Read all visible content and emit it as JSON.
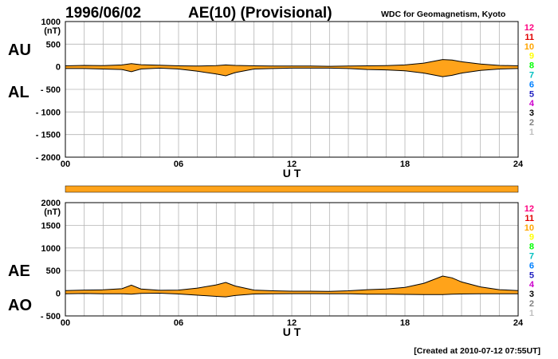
{
  "header": {
    "date": "1996/06/02",
    "title": "AE(10) (Provisional)",
    "source": "WDC for Geomagnetism, Kyoto"
  },
  "footer": {
    "created": "[Created at 2010-07-12 07:55UT]"
  },
  "colors": {
    "fill": "#ffa31a",
    "grid": "#b4b4b4",
    "line": "#000000",
    "station_colors": [
      "#c0c0c0",
      "#808080",
      "#000000",
      "#cc00cc",
      "#2020c0",
      "#0080ff",
      "#00c0c0",
      "#00ff00",
      "#ffff00",
      "#ffa500",
      "#e00000",
      "#ff0080"
    ]
  },
  "station_labels": [
    "1",
    "2",
    "3",
    "4",
    "5",
    "6",
    "7",
    "8",
    "9",
    "10",
    "11",
    "12"
  ],
  "chart_data": [
    {
      "type": "area",
      "title": "1996/06/02 AE(10) (Provisional)",
      "ylabel_unit": "(nT)",
      "side_labels": [
        "AU",
        "AL"
      ],
      "xlabel": "U T",
      "x_ticks": [
        "00",
        "06",
        "12",
        "18",
        "24"
      ],
      "y_ticks": [
        "1000",
        "500",
        "0",
        "- 500",
        "- 1000",
        "- 1500",
        "- 2000"
      ],
      "xlim": [
        0,
        24
      ],
      "ylim": [
        -2000,
        1000
      ],
      "grid": true,
      "series": [
        {
          "name": "AU",
          "x": [
            0,
            1,
            2,
            3,
            3.5,
            4,
            5,
            6,
            7,
            8,
            8.5,
            9,
            10,
            11,
            12,
            13,
            14,
            15,
            16,
            17,
            18,
            19,
            19.5,
            20,
            20.5,
            21,
            22,
            23,
            24
          ],
          "values": [
            20,
            30,
            25,
            40,
            70,
            45,
            35,
            20,
            15,
            25,
            40,
            30,
            20,
            15,
            15,
            15,
            10,
            15,
            20,
            25,
            40,
            80,
            120,
            160,
            150,
            110,
            60,
            30,
            20
          ]
        },
        {
          "name": "AL",
          "x": [
            0,
            1,
            2,
            3,
            3.5,
            4,
            5,
            6,
            7,
            8,
            8.5,
            9,
            10,
            11,
            12,
            13,
            14,
            15,
            16,
            17,
            18,
            19,
            19.5,
            20,
            20.5,
            21,
            22,
            23,
            24
          ],
          "values": [
            -40,
            -40,
            -50,
            -60,
            -110,
            -50,
            -30,
            -50,
            -100,
            -160,
            -200,
            -130,
            -50,
            -40,
            -30,
            -30,
            -30,
            -40,
            -60,
            -70,
            -90,
            -140,
            -180,
            -220,
            -190,
            -140,
            -80,
            -50,
            -40
          ]
        }
      ]
    },
    {
      "type": "area",
      "ylabel_unit": "(nT)",
      "side_labels": [
        "AE",
        "AO"
      ],
      "xlabel": "U T",
      "x_ticks": [
        "00",
        "06",
        "12",
        "18",
        "24"
      ],
      "y_ticks": [
        "2000",
        "1500",
        "1000",
        "500",
        "0",
        "- 500"
      ],
      "xlim": [
        0,
        24
      ],
      "ylim": [
        -500,
        2000
      ],
      "grid": true,
      "series": [
        {
          "name": "AE",
          "x": [
            0,
            1,
            2,
            3,
            3.5,
            4,
            5,
            6,
            7,
            8,
            8.5,
            9,
            10,
            11,
            12,
            13,
            14,
            15,
            16,
            17,
            18,
            19,
            19.5,
            20,
            20.5,
            21,
            22,
            23,
            24
          ],
          "values": [
            60,
            70,
            75,
            100,
            180,
            95,
            65,
            70,
            115,
            185,
            240,
            160,
            70,
            55,
            45,
            45,
            40,
            55,
            80,
            95,
            130,
            220,
            300,
            380,
            340,
            250,
            140,
            80,
            60
          ]
        },
        {
          "name": "AO",
          "x": [
            0,
            1,
            2,
            3,
            3.5,
            4,
            5,
            6,
            7,
            8,
            8.5,
            9,
            10,
            11,
            12,
            13,
            14,
            15,
            16,
            17,
            18,
            19,
            19.5,
            20,
            20.5,
            21,
            22,
            23,
            24
          ],
          "values": [
            -10,
            -5,
            -12,
            -10,
            -20,
            -3,
            2,
            -15,
            -42,
            -68,
            -80,
            -50,
            -15,
            -12,
            -8,
            -8,
            -10,
            -12,
            -20,
            -22,
            -25,
            -30,
            -30,
            -30,
            -20,
            -15,
            -10,
            -10,
            -10
          ]
        }
      ]
    }
  ]
}
